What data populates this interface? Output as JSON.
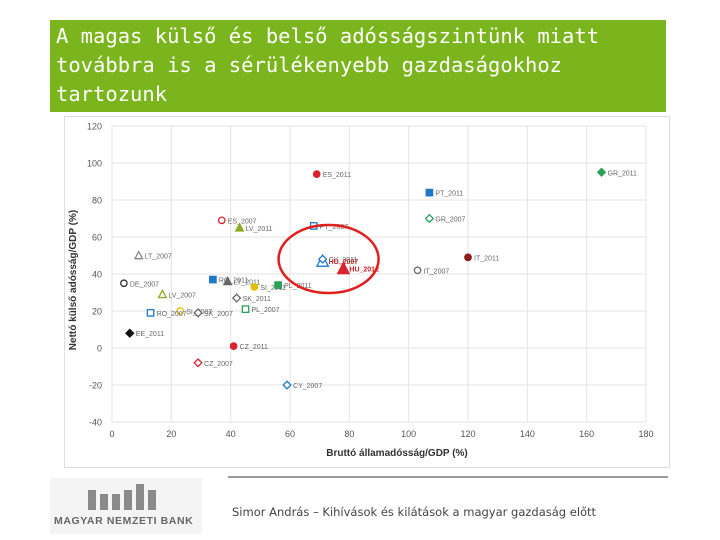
{
  "slide": {
    "title": "A magas külső és belső adósságszintünk miatt továbbra is a sérülékenyebb gazdaságokhoz tartozunk",
    "footer_text": "Simor András – Kihívások és kilátások a magyar gazdaság előtt",
    "logo_text": "MAGYAR NEMZETI BANK",
    "accent_color": "#7ab51d"
  },
  "chart_data": {
    "type": "scatter",
    "xlabel": "Bruttó államadósság/GDP (%)",
    "ylabel": "Nettó külső adósság/GDP (%)",
    "xlim": [
      0,
      180
    ],
    "ylim": [
      -40,
      120
    ],
    "x_ticks": [
      0,
      20,
      40,
      60,
      80,
      100,
      120,
      140,
      160,
      180
    ],
    "y_ticks": [
      -40,
      -20,
      0,
      20,
      40,
      60,
      80,
      100,
      120
    ],
    "grid": true,
    "highlight_circle": {
      "center": [
        73,
        47
      ],
      "note": "Hungary highlighted"
    },
    "points": [
      {
        "label": "ES_2011",
        "x": 69,
        "y": 94,
        "marker": "circle-filled",
        "color": "#d9232d"
      },
      {
        "label": "PT_2011",
        "x": 107,
        "y": 84,
        "marker": "square-filled",
        "color": "#1f78c8"
      },
      {
        "label": "GR_2011",
        "x": 165,
        "y": 95,
        "marker": "diamond-filled",
        "color": "#2aa05a"
      },
      {
        "label": "ES_2007",
        "x": 37,
        "y": 69,
        "marker": "circle-open",
        "color": "#d9232d"
      },
      {
        "label": "LV_2011",
        "x": 43,
        "y": 65,
        "marker": "triangle-filled",
        "color": "#8aaa1e"
      },
      {
        "label": "PT_2007",
        "x": 68,
        "y": 66,
        "marker": "square-open",
        "color": "#1f78c8"
      },
      {
        "label": "GR_2007",
        "x": 107,
        "y": 70,
        "marker": "diamond-open",
        "color": "#2aa05a"
      },
      {
        "label": "LT_2007",
        "x": 9,
        "y": 50,
        "marker": "triangle-open",
        "color": "#888888"
      },
      {
        "label": "HU_2007",
        "x": 71,
        "y": 47,
        "marker": "triangle-open",
        "color": "#1f78c8"
      },
      {
        "label": "CY_2011",
        "x": 71,
        "y": 48,
        "marker": "diamond-open",
        "color": "#1f78c8"
      },
      {
        "label": "HU_2012",
        "x": 78,
        "y": 43,
        "marker": "triangle-filled",
        "color": "#d9232d"
      },
      {
        "label": "IT_2011",
        "x": 120,
        "y": 49,
        "marker": "circle-filled",
        "color": "#8b1a1a"
      },
      {
        "label": "IT_2007",
        "x": 103,
        "y": 42,
        "marker": "circle-open",
        "color": "#666666"
      },
      {
        "label": "RO_2011",
        "x": 34,
        "y": 37,
        "marker": "square-filled",
        "color": "#1f78c8"
      },
      {
        "label": "LT_2011",
        "x": 39,
        "y": 36,
        "marker": "triangle-filled",
        "color": "#666666"
      },
      {
        "label": "SI_2011",
        "x": 48,
        "y": 33,
        "marker": "circle-filled",
        "color": "#e0c000"
      },
      {
        "label": "PL_2011",
        "x": 56,
        "y": 34,
        "marker": "square-filled",
        "color": "#2aa05a"
      },
      {
        "label": "DE_2007",
        "x": 4,
        "y": 35,
        "marker": "circle-open",
        "color": "#333333"
      },
      {
        "label": "LV_2007",
        "x": 17,
        "y": 29,
        "marker": "triangle-open",
        "color": "#8aaa1e"
      },
      {
        "label": "SK_2011",
        "x": 42,
        "y": 27,
        "marker": "diamond-open",
        "color": "#666666"
      },
      {
        "label": "SI_2007",
        "x": 23,
        "y": 20,
        "marker": "circle-open",
        "color": "#e0c000"
      },
      {
        "label": "SK_2007",
        "x": 29,
        "y": 19,
        "marker": "diamond-open",
        "color": "#666666"
      },
      {
        "label": "PL_2007",
        "x": 45,
        "y": 21,
        "marker": "square-open",
        "color": "#2aa05a"
      },
      {
        "label": "RO_2007",
        "x": 13,
        "y": 19,
        "marker": "square-open",
        "color": "#1f78c8"
      },
      {
        "label": "EE_2011",
        "x": 6,
        "y": 8,
        "marker": "diamond-filled",
        "color": "#111111"
      },
      {
        "label": "CZ_2011",
        "x": 41,
        "y": 1,
        "marker": "circle-filled",
        "color": "#d9232d"
      },
      {
        "label": "CZ_2007",
        "x": 29,
        "y": -8,
        "marker": "diamond-open",
        "color": "#d9232d"
      },
      {
        "label": "CY_2007",
        "x": 59,
        "y": -20,
        "marker": "diamond-open",
        "color": "#1f78c8"
      }
    ]
  }
}
